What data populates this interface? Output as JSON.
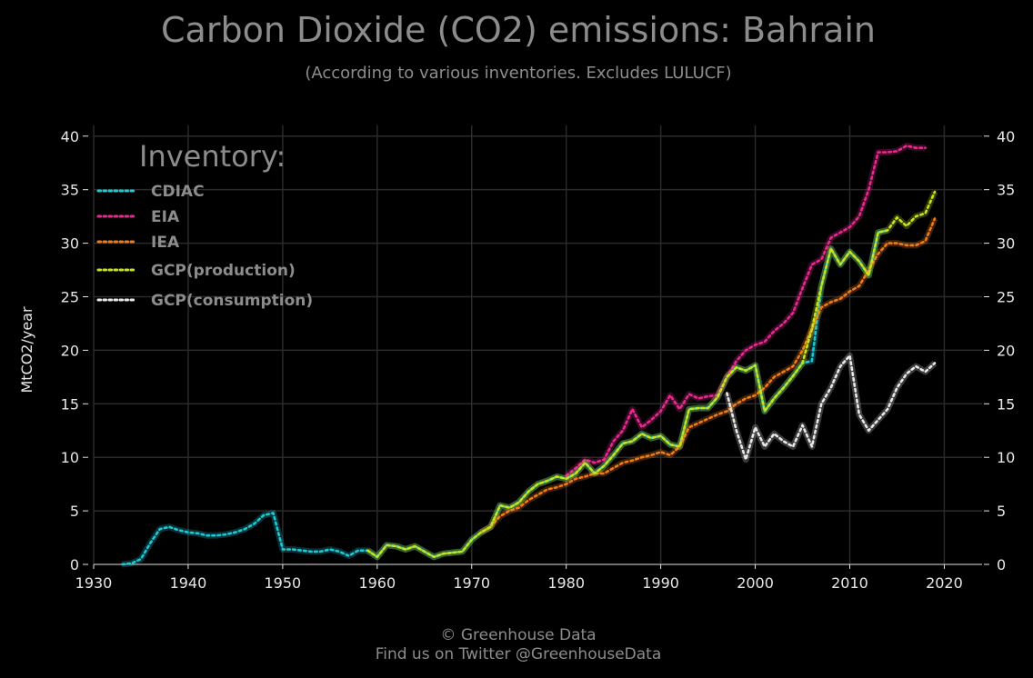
{
  "chart_data": {
    "type": "line",
    "title": "Carbon Dioxide (CO2) emissions: Bahrain",
    "subtitle": "(According to various inventories. Excludes LULUCF)",
    "xlabel": "",
    "ylabel": "MtCO2/year",
    "xlim": [
      1930,
      2024
    ],
    "ylim": [
      0,
      41
    ],
    "xticks": [
      1930,
      1940,
      1950,
      1960,
      1970,
      1980,
      1990,
      2000,
      2010,
      2020
    ],
    "yticks": [
      0,
      5,
      10,
      15,
      20,
      25,
      30,
      35,
      40
    ],
    "grid": true,
    "legend": {
      "title": "Inventory:",
      "placement": "top-left"
    },
    "series": [
      {
        "name": "CDIAC",
        "color": "#1ac8d6",
        "x": [
          1933,
          1934,
          1935,
          1936,
          1937,
          1938,
          1939,
          1940,
          1941,
          1942,
          1943,
          1944,
          1945,
          1946,
          1947,
          1948,
          1949,
          1950,
          1951,
          1952,
          1953,
          1954,
          1955,
          1956,
          1957,
          1958,
          1959,
          1960,
          1961,
          1962,
          1963,
          1964,
          1965,
          1966,
          1967,
          1968,
          1969,
          1970,
          1971,
          1972,
          1973,
          1974,
          1975,
          1976,
          1977,
          1978,
          1979,
          1980,
          1981,
          1982,
          1983,
          1984,
          1985,
          1986,
          1987,
          1988,
          1989,
          1990,
          1991,
          1992,
          1993,
          1994,
          1995,
          1996,
          1997,
          1998,
          1999,
          2000,
          2001,
          2002,
          2003,
          2004,
          2005,
          2006,
          2007,
          2008,
          2009,
          2010,
          2011,
          2012,
          2013,
          2014
        ],
        "y": [
          0.0,
          0.1,
          0.5,
          2.0,
          3.3,
          3.5,
          3.2,
          3.0,
          2.9,
          2.7,
          2.7,
          2.8,
          3.0,
          3.3,
          3.8,
          4.6,
          4.8,
          1.4,
          1.4,
          1.3,
          1.2,
          1.2,
          1.4,
          1.2,
          0.8,
          1.3,
          1.3,
          0.7,
          1.8,
          1.7,
          1.4,
          1.7,
          1.2,
          0.7,
          1.0,
          1.1,
          1.2,
          2.3,
          3.0,
          3.5,
          5.5,
          5.3,
          5.8,
          6.8,
          7.5,
          7.8,
          8.2,
          8.0,
          8.5,
          9.5,
          8.5,
          9.2,
          10.2,
          11.3,
          11.5,
          12.2,
          11.8,
          12.0,
          11.2,
          11.0,
          14.5,
          14.6,
          14.6,
          15.6,
          17.5,
          18.4,
          18.1,
          18.6,
          14.3,
          15.5,
          16.5,
          17.6,
          18.8,
          19.0,
          26.0,
          29.5,
          28.0,
          29.2,
          28.3,
          27.0,
          31.0,
          31.2
        ]
      },
      {
        "name": "EIA",
        "color": "#e8298e",
        "x": [
          1980,
          1981,
          1982,
          1983,
          1984,
          1985,
          1986,
          1987,
          1988,
          1989,
          1990,
          1991,
          1992,
          1993,
          1994,
          1995,
          1996,
          1997,
          1998,
          1999,
          2000,
          2001,
          2002,
          2003,
          2004,
          2005,
          2006,
          2007,
          2008,
          2009,
          2010,
          2011,
          2012,
          2013,
          2014,
          2015,
          2016,
          2017,
          2018
        ],
        "y": [
          8.3,
          9.0,
          9.8,
          9.5,
          9.8,
          11.5,
          12.5,
          14.5,
          12.8,
          13.5,
          14.3,
          15.8,
          14.5,
          15.9,
          15.5,
          15.7,
          15.8,
          17.5,
          19.0,
          20.0,
          20.5,
          20.8,
          21.8,
          22.5,
          23.5,
          25.8,
          28.0,
          28.5,
          30.5,
          31.0,
          31.5,
          32.5,
          35.0,
          38.5,
          38.5,
          38.6,
          39.1,
          38.9,
          38.9
        ]
      },
      {
        "name": "IEA",
        "color": "#f07a14",
        "x": [
          1971,
          1972,
          1973,
          1974,
          1975,
          1976,
          1977,
          1978,
          1979,
          1980,
          1981,
          1982,
          1983,
          1984,
          1985,
          1986,
          1987,
          1988,
          1989,
          1990,
          1991,
          1992,
          1993,
          1994,
          1995,
          1996,
          1997,
          1998,
          1999,
          2000,
          2001,
          2002,
          2003,
          2004,
          2005,
          2006,
          2007,
          2008,
          2009,
          2010,
          2011,
          2012,
          2013,
          2014,
          2015,
          2016,
          2017,
          2018,
          2019
        ],
        "y": [
          3.0,
          3.5,
          4.5,
          5.0,
          5.3,
          6.0,
          6.5,
          7.0,
          7.2,
          7.5,
          8.0,
          8.2,
          8.5,
          8.5,
          9.0,
          9.5,
          9.7,
          10.0,
          10.2,
          10.5,
          10.2,
          11.0,
          12.8,
          13.2,
          13.6,
          14.0,
          14.3,
          15.0,
          15.5,
          15.8,
          16.5,
          17.5,
          18.0,
          18.5,
          20.0,
          22.0,
          24.0,
          24.5,
          24.8,
          25.5,
          26.0,
          27.5,
          29.0,
          30.0,
          30.0,
          29.8,
          29.8,
          30.2,
          32.3
        ]
      },
      {
        "name": "GCP(production)",
        "color": "#c9e31a",
        "x": [
          1959,
          1960,
          1961,
          1962,
          1963,
          1964,
          1965,
          1966,
          1967,
          1968,
          1969,
          1970,
          1971,
          1972,
          1973,
          1974,
          1975,
          1976,
          1977,
          1978,
          1979,
          1980,
          1981,
          1982,
          1983,
          1984,
          1985,
          1986,
          1987,
          1988,
          1989,
          1990,
          1991,
          1992,
          1993,
          1994,
          1995,
          1996,
          1997,
          1998,
          1999,
          2000,
          2001,
          2002,
          2003,
          2004,
          2005,
          2006,
          2007,
          2008,
          2009,
          2010,
          2011,
          2012,
          2013,
          2014,
          2015,
          2016,
          2017,
          2018,
          2019
        ],
        "y": [
          1.3,
          0.7,
          1.8,
          1.7,
          1.4,
          1.7,
          1.2,
          0.7,
          1.0,
          1.1,
          1.2,
          2.3,
          3.0,
          3.5,
          5.5,
          5.3,
          5.8,
          6.8,
          7.5,
          7.8,
          8.2,
          8.0,
          8.5,
          9.5,
          8.5,
          9.2,
          10.2,
          11.3,
          11.5,
          12.2,
          11.8,
          12.0,
          11.2,
          11.0,
          14.5,
          14.6,
          14.6,
          15.6,
          17.5,
          18.4,
          18.1,
          18.6,
          14.3,
          15.5,
          16.5,
          17.6,
          18.8,
          22.0,
          26.0,
          29.5,
          28.0,
          29.2,
          28.3,
          27.0,
          31.0,
          31.2,
          32.4,
          31.6,
          32.5,
          32.8,
          34.8
        ]
      },
      {
        "name": "GCP(consumption)",
        "color": "#e8e8e8",
        "x": [
          1997,
          1998,
          1999,
          2000,
          2001,
          2002,
          2003,
          2004,
          2005,
          2006,
          2007,
          2008,
          2009,
          2010,
          2011,
          2012,
          2013,
          2014,
          2015,
          2016,
          2017,
          2018,
          2019
        ],
        "y": [
          16.0,
          12.5,
          9.8,
          12.8,
          11.0,
          12.2,
          11.5,
          11.0,
          13.0,
          11.0,
          15.0,
          16.5,
          18.5,
          19.5,
          14.0,
          12.5,
          13.5,
          14.5,
          16.5,
          17.8,
          18.5,
          18.0,
          18.8
        ]
      }
    ]
  },
  "footer": {
    "copyright": "© Greenhouse Data",
    "twitter": "Find us on Twitter @GreenhouseData"
  }
}
